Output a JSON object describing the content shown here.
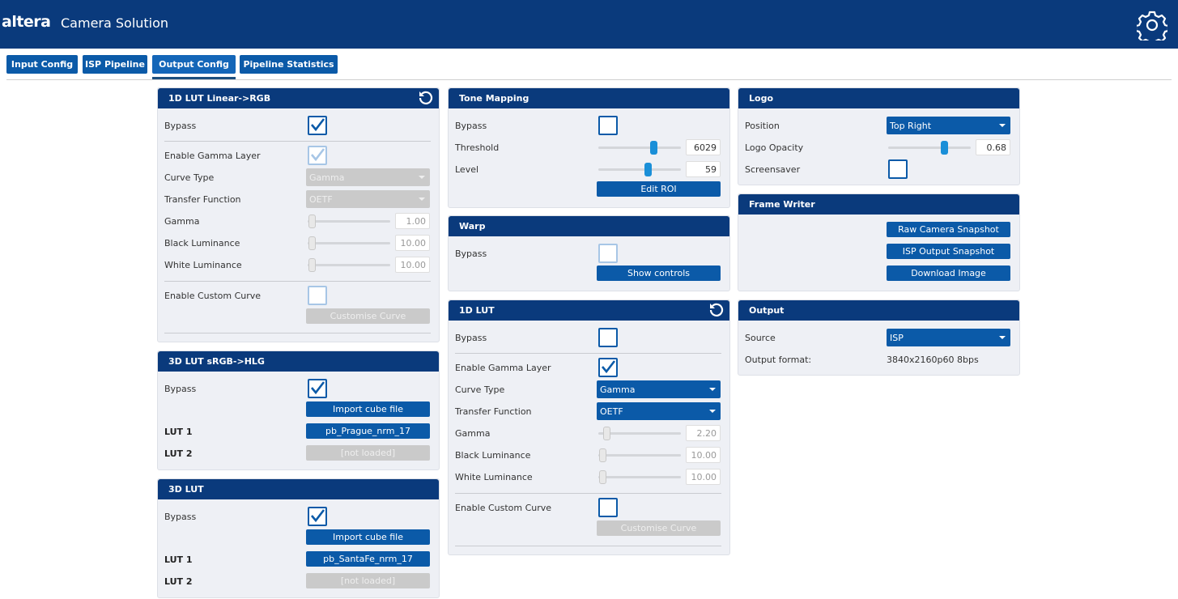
{
  "header": {
    "logo": "altera",
    "title": "Camera Solution"
  },
  "tabs": [
    "Input Config",
    "ISP Pipeline",
    "Output Config",
    "Pipeline Statistics"
  ],
  "panels": [
    {
      "title": "1D LUT Linear->RGB",
      "rows": [
        {
          "label": "Bypass"
        },
        {
          "label": "Enable Gamma Layer"
        },
        {
          "label": "Curve Type",
          "value": "Gamma"
        },
        {
          "label": "Transfer Function",
          "value": "OETF"
        },
        {
          "label": "Gamma",
          "value": "1.00"
        },
        {
          "label": "Black Luminance",
          "value": "10.00"
        },
        {
          "label": "White Luminance",
          "value": "10.00"
        },
        {
          "label": "Enable Custom Curve"
        },
        {
          "button": "Customise Curve"
        }
      ]
    },
    {
      "title": "3D LUT sRGB->HLG",
      "rows": [
        {
          "label": "Bypass"
        },
        {
          "button": "Import cube file"
        },
        {
          "label": "LUT 1",
          "button": "pb_Prague_nrm_17"
        },
        {
          "label": "LUT 2",
          "button": "[not loaded]"
        }
      ]
    },
    {
      "title": "3D LUT",
      "rows": [
        {
          "label": "Bypass"
        },
        {
          "button": "Import cube file"
        },
        {
          "label": "LUT 1",
          "button": "pb_SantaFe_nrm_17"
        },
        {
          "label": "LUT 2",
          "button": "[not loaded]"
        }
      ]
    },
    {
      "title": "Tone Mapping",
      "rows": [
        {
          "label": "Bypass"
        },
        {
          "label": "Threshold",
          "value": "6029"
        },
        {
          "label": "Level",
          "value": "59"
        },
        {
          "button": "Edit ROI"
        }
      ]
    },
    {
      "title": "Warp",
      "rows": [
        {
          "label": "Bypass"
        },
        {
          "button": "Show controls"
        }
      ]
    },
    {
      "title": "1D LUT",
      "rows": [
        {
          "label": "Bypass"
        },
        {
          "label": "Enable Gamma Layer"
        },
        {
          "label": "Curve Type",
          "value": "Gamma"
        },
        {
          "label": "Transfer Function",
          "value": "OETF"
        },
        {
          "label": "Gamma",
          "value": "2.20"
        },
        {
          "label": "Black Luminance",
          "value": "10.00"
        },
        {
          "label": "White Luminance",
          "value": "10.00"
        },
        {
          "label": "Enable Custom Curve"
        },
        {
          "button": "Customise Curve"
        }
      ]
    },
    {
      "title": "Logo",
      "rows": [
        {
          "label": "Position",
          "value": "Top Right"
        },
        {
          "label": "Logo Opacity",
          "value": "0.68"
        },
        {
          "label": "Screensaver"
        }
      ]
    },
    {
      "title": "Frame Writer",
      "rows": [
        {
          "button": "Raw Camera Snapshot"
        },
        {
          "button": "ISP Output Snapshot"
        },
        {
          "button": "Download Image"
        }
      ]
    },
    {
      "title": "Output",
      "rows": [
        {
          "label": "Source",
          "value": "ISP"
        },
        {
          "label": "Output format:",
          "value": "3840x2160p60 8bps"
        }
      ]
    }
  ]
}
